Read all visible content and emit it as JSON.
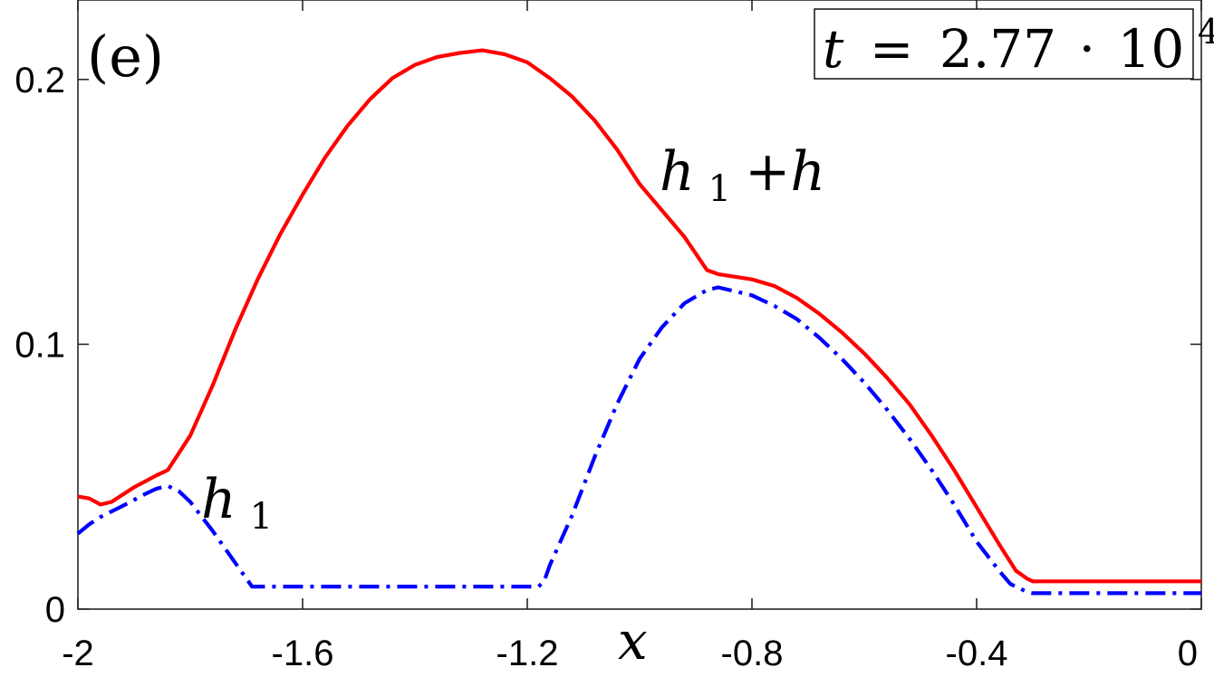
{
  "chart_data": {
    "type": "line",
    "panel_label": "(e)",
    "time_label": {
      "var": "t",
      "eq": "=",
      "mantissa": "2.77",
      "dot": "·",
      "base": "10",
      "exponent": "4"
    },
    "xlabel": "x",
    "ylabel": "",
    "xlim": [
      -2,
      0
    ],
    "ylim": [
      0,
      0.23
    ],
    "xticks": [
      -2,
      -1.6,
      -1.2,
      -0.8,
      -0.4,
      0
    ],
    "xtick_labels": [
      "-2",
      "-1.6",
      "-1.2",
      "-0.8",
      "-0.4",
      "0"
    ],
    "yticks": [
      0,
      0.1,
      0.2
    ],
    "ytick_labels": [
      "0",
      "0.1",
      "0.2"
    ],
    "grid": false,
    "series": [
      {
        "name": "h1+h",
        "label_base": "h",
        "label_sub": "1",
        "label_rest": "+h",
        "color": "#ff0000",
        "style": "solid",
        "x": [
          -2.0,
          -1.98,
          -1.96,
          -1.94,
          -1.9,
          -1.86,
          -1.84,
          -1.8,
          -1.76,
          -1.72,
          -1.68,
          -1.64,
          -1.6,
          -1.56,
          -1.52,
          -1.48,
          -1.44,
          -1.4,
          -1.36,
          -1.32,
          -1.28,
          -1.24,
          -1.2,
          -1.16,
          -1.12,
          -1.08,
          -1.04,
          -1.0,
          -0.96,
          -0.92,
          -0.88,
          -0.86,
          -0.8,
          -0.76,
          -0.72,
          -0.68,
          -0.64,
          -0.6,
          -0.56,
          -0.52,
          -0.48,
          -0.44,
          -0.4,
          -0.36,
          -0.33,
          -0.31,
          -0.3,
          -0.2,
          -0.1,
          0.0
        ],
        "y": [
          0.0425,
          0.0418,
          0.0395,
          0.0405,
          0.046,
          0.0505,
          0.0525,
          0.0655,
          0.0845,
          0.1055,
          0.1245,
          0.1415,
          0.1565,
          0.1705,
          0.1825,
          0.1925,
          0.2005,
          0.2055,
          0.2085,
          0.21,
          0.211,
          0.2095,
          0.2065,
          0.2005,
          0.1935,
          0.1845,
          0.1735,
          0.1605,
          0.1505,
          0.1405,
          0.128,
          0.1265,
          0.1245,
          0.122,
          0.1175,
          0.1115,
          0.1045,
          0.0965,
          0.0875,
          0.0775,
          0.0655,
          0.0525,
          0.0385,
          0.0245,
          0.0145,
          0.0115,
          0.0105,
          0.0105,
          0.0105,
          0.0105
        ]
      },
      {
        "name": "h1",
        "label_base": "h",
        "label_sub": "1",
        "label_rest": "",
        "color": "#0000ff",
        "style": "dashdot",
        "x": [
          -2.0,
          -1.98,
          -1.96,
          -1.92,
          -1.88,
          -1.86,
          -1.84,
          -1.82,
          -1.8,
          -1.76,
          -1.72,
          -1.7,
          -1.69,
          -1.6,
          -1.4,
          -1.2,
          -1.18,
          -1.17,
          -1.16,
          -1.12,
          -1.08,
          -1.04,
          -1.0,
          -0.96,
          -0.92,
          -0.88,
          -0.86,
          -0.8,
          -0.76,
          -0.72,
          -0.68,
          -0.64,
          -0.6,
          -0.56,
          -0.52,
          -0.48,
          -0.44,
          -0.4,
          -0.36,
          -0.34,
          -0.32,
          -0.31,
          -0.3,
          -0.2,
          -0.1,
          0.0
        ],
        "y": [
          0.0285,
          0.032,
          0.0348,
          0.039,
          0.0435,
          0.0455,
          0.0465,
          0.0445,
          0.0405,
          0.0295,
          0.0175,
          0.0115,
          0.0085,
          0.0085,
          0.0085,
          0.0085,
          0.0085,
          0.0105,
          0.0165,
          0.0355,
          0.0575,
          0.0775,
          0.0945,
          0.1065,
          0.1155,
          0.1205,
          0.1215,
          0.1185,
          0.1145,
          0.1095,
          0.1025,
          0.0945,
          0.0855,
          0.0755,
          0.0645,
          0.0525,
          0.0395,
          0.0255,
          0.0145,
          0.0095,
          0.0075,
          0.0065,
          0.006,
          0.006,
          0.006,
          0.006
        ]
      }
    ]
  }
}
